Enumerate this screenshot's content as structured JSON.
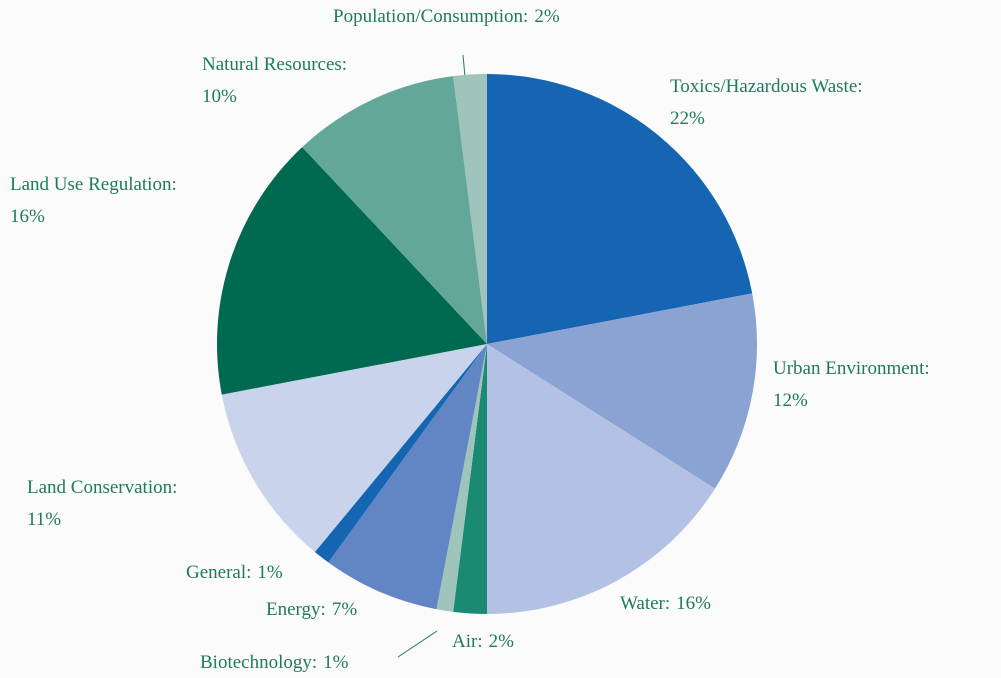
{
  "chart_data": {
    "type": "pie",
    "categories": [
      "Toxics/Hazardous Waste:",
      "Urban Environment:",
      "Water:",
      "Air:",
      "Biotechnology:",
      "Energy:",
      "General:",
      "Land Conservation:",
      "Land Use Regulation:",
      "Natural Resources:",
      "Population/Consumption:"
    ],
    "values": [
      22,
      12,
      16,
      2,
      1,
      7,
      1,
      11,
      16,
      10,
      2
    ],
    "value_labels": [
      "22%",
      "12%",
      "16%",
      "2%",
      "1%",
      "7%",
      "1%",
      "11%",
      "16%",
      "10%",
      "2%"
    ],
    "colors": [
      "#1565b3",
      "#8aa3d3",
      "#b3c1e4",
      "#1a8a72",
      "#9ec4bb",
      "#6285c4",
      "#1565b3",
      "#c9d3ec",
      "#006a50",
      "#62a797",
      "#9ec4bb"
    ]
  }
}
